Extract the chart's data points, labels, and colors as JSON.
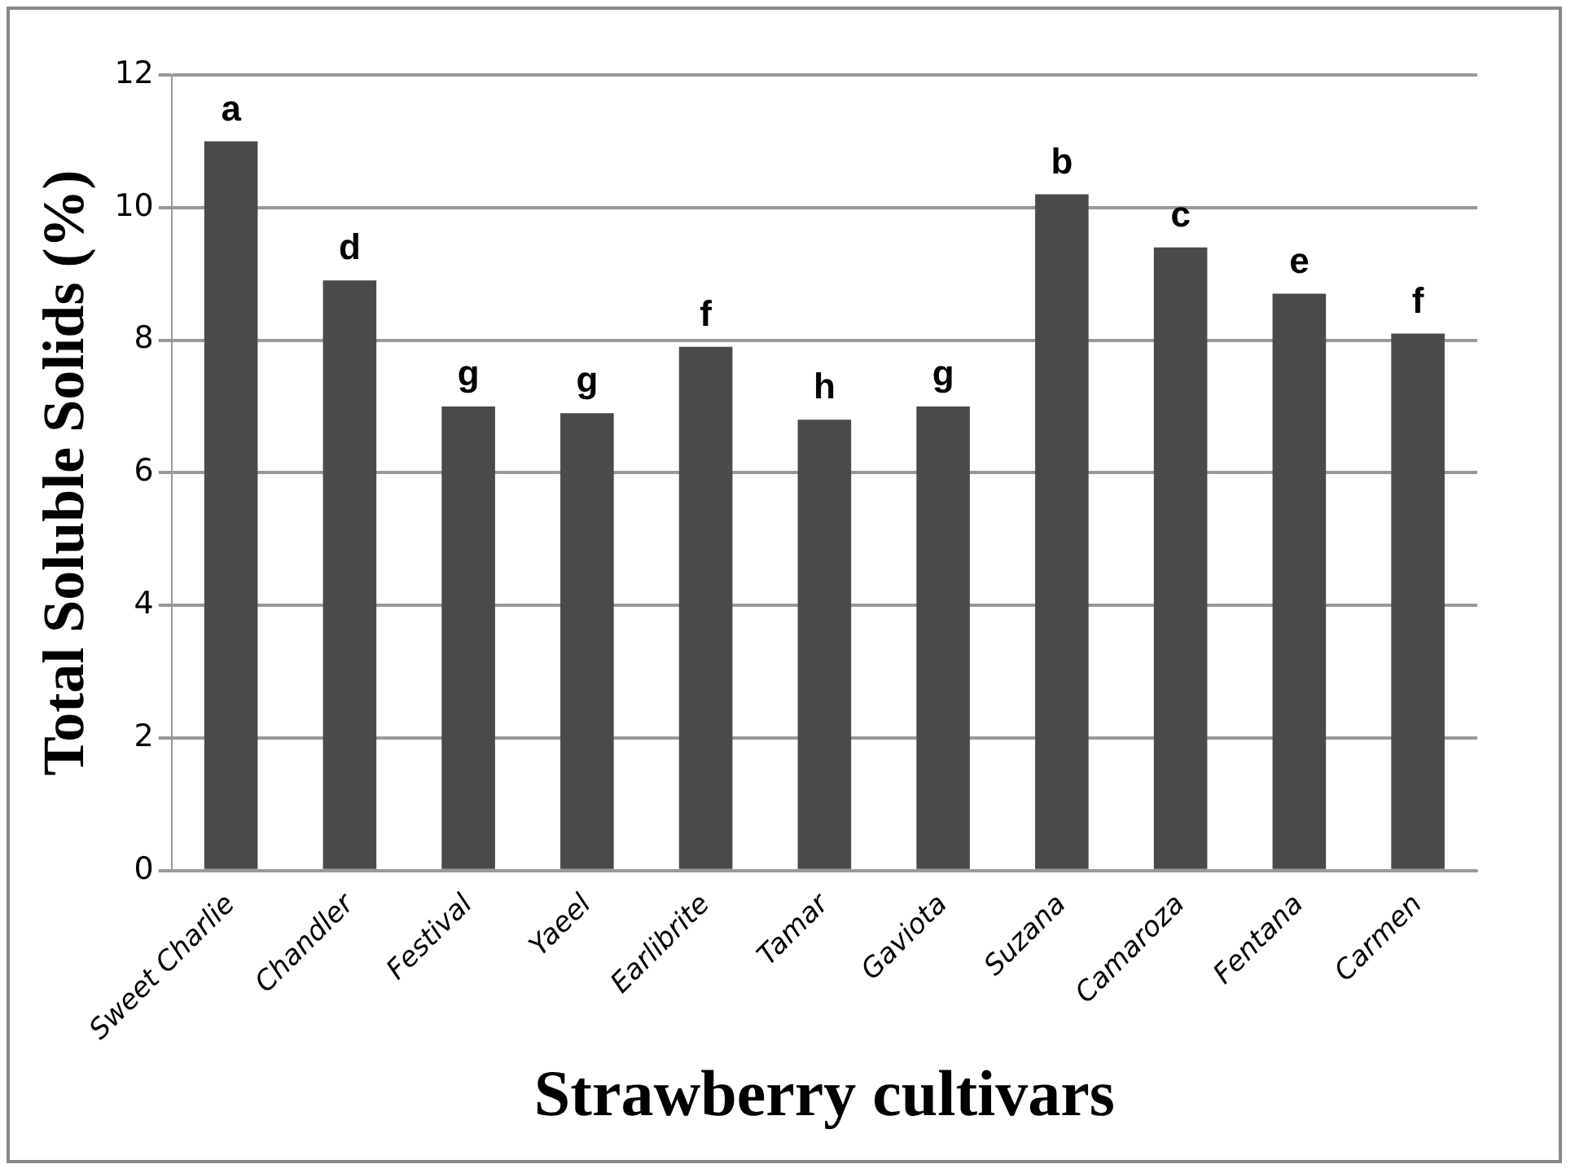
{
  "chart_data": {
    "type": "bar",
    "xlabel": "Strawberry cultivars",
    "ylabel": "Total Soluble Solids (%)",
    "categories": [
      "Sweet Charlie",
      "Chandler",
      "Festival",
      "Yaeel",
      "Earlibrite",
      "Tamar",
      "Gaviota",
      "Suzana",
      "Camaroza",
      "Fentana",
      "Carmen"
    ],
    "values": [
      11.0,
      8.9,
      7.0,
      6.9,
      7.9,
      6.8,
      7.0,
      10.2,
      9.4,
      8.7,
      8.1
    ],
    "color": "#4a4a4a",
    "ylim": [
      0,
      12
    ],
    "yticks": [
      0,
      2,
      4,
      6,
      8,
      10,
      12
    ],
    "grid": "y",
    "legend": false,
    "annotations": [
      {
        "text": "a",
        "x": "Sweet Charlie",
        "y": 11.0
      },
      {
        "text": "d",
        "x": "Chandler",
        "y": 8.9
      },
      {
        "text": "g",
        "x": "Festival",
        "y": 7.0
      },
      {
        "text": "g",
        "x": "Yaeel",
        "y": 6.9
      },
      {
        "text": "f",
        "x": "Earlibrite",
        "y": 7.9
      },
      {
        "text": "h",
        "x": "Tamar",
        "y": 6.8
      },
      {
        "text": "g",
        "x": "Gaviota",
        "y": 7.0
      },
      {
        "text": "b",
        "x": "Suzana",
        "y": 10.2
      },
      {
        "text": "c",
        "x": "Camaroza",
        "y": 9.4
      },
      {
        "text": "e",
        "x": "Fentana",
        "y": 8.7
      },
      {
        "text": "f",
        "x": "Carmen",
        "y": 8.1
      }
    ]
  }
}
